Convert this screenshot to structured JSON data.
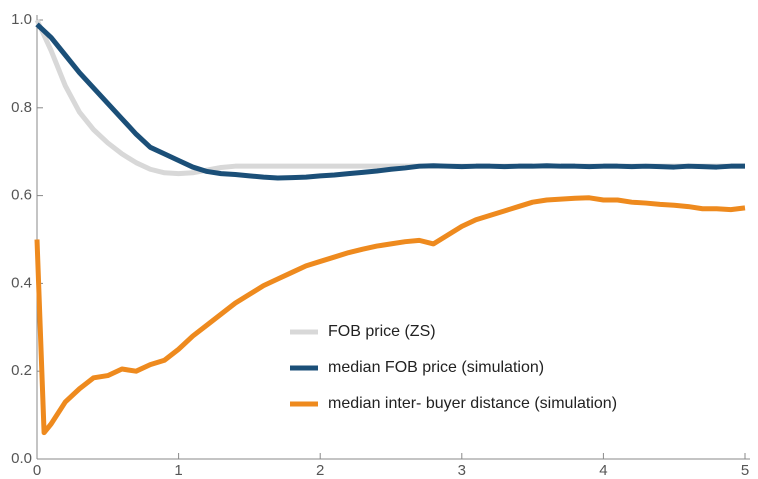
{
  "chart_data": {
    "type": "line",
    "x": [
      0,
      0.05,
      0.1,
      0.2,
      0.3,
      0.4,
      0.5,
      0.6,
      0.7,
      0.8,
      0.9,
      1.0,
      1.1,
      1.2,
      1.3,
      1.4,
      1.5,
      1.6,
      1.7,
      1.8,
      1.9,
      2.0,
      2.1,
      2.2,
      2.3,
      2.4,
      2.5,
      2.6,
      2.7,
      2.8,
      2.9,
      3.0,
      3.1,
      3.2,
      3.3,
      3.4,
      3.5,
      3.6,
      3.7,
      3.8,
      3.9,
      4.0,
      4.1,
      4.2,
      4.3,
      4.4,
      4.5,
      4.6,
      4.7,
      4.8,
      4.9,
      5.0
    ],
    "series": [
      {
        "name": "FOB price (ZS)",
        "color": "#d8d8d8",
        "values": [
          1.0,
          0.965,
          0.93,
          0.85,
          0.79,
          0.75,
          0.72,
          0.695,
          0.675,
          0.66,
          0.652,
          0.65,
          0.652,
          0.658,
          0.664,
          0.667,
          0.667,
          0.667,
          0.667,
          0.667,
          0.667,
          0.667,
          0.667,
          0.667,
          0.667,
          0.667,
          0.667,
          0.667,
          0.667,
          0.667,
          0.667,
          0.667,
          0.667,
          0.667,
          0.667,
          0.667,
          0.667,
          0.667,
          0.667,
          0.667,
          0.667,
          0.667,
          0.667,
          0.667,
          0.667,
          0.667,
          0.667,
          0.667,
          0.667,
          0.667,
          0.667,
          0.667
        ]
      },
      {
        "name": "median FOB price (simulation)",
        "color": "#1b4f78",
        "values": [
          0.99,
          0.975,
          0.96,
          0.92,
          0.88,
          0.845,
          0.81,
          0.775,
          0.74,
          0.71,
          0.695,
          0.68,
          0.665,
          0.655,
          0.65,
          0.648,
          0.645,
          0.642,
          0.64,
          0.641,
          0.642,
          0.645,
          0.647,
          0.65,
          0.653,
          0.656,
          0.66,
          0.663,
          0.667,
          0.668,
          0.667,
          0.666,
          0.667,
          0.667,
          0.666,
          0.667,
          0.667,
          0.668,
          0.667,
          0.667,
          0.666,
          0.667,
          0.667,
          0.666,
          0.667,
          0.666,
          0.665,
          0.667,
          0.666,
          0.665,
          0.667,
          0.667
        ]
      },
      {
        "name": "median inter- buyer distance (simulation)",
        "color": "#ee8a1e",
        "values": [
          0.5,
          0.06,
          0.08,
          0.13,
          0.16,
          0.185,
          0.19,
          0.205,
          0.2,
          0.215,
          0.225,
          0.25,
          0.28,
          0.305,
          0.33,
          0.355,
          0.375,
          0.395,
          0.41,
          0.425,
          0.44,
          0.45,
          0.46,
          0.47,
          0.478,
          0.485,
          0.49,
          0.495,
          0.498,
          0.49,
          0.51,
          0.53,
          0.545,
          0.555,
          0.565,
          0.575,
          0.585,
          0.59,
          0.592,
          0.594,
          0.595,
          0.59,
          0.59,
          0.585,
          0.583,
          0.58,
          0.578,
          0.575,
          0.57,
          0.57,
          0.568,
          0.572
        ]
      }
    ],
    "xlim": [
      0,
      5
    ],
    "xticks": [
      0,
      1,
      2,
      3,
      4,
      5
    ],
    "ylim": [
      0,
      1
    ],
    "yticks": [
      {
        "value": 0,
        "label": "0.0"
      },
      0.2,
      0.4,
      0.6,
      0.8,
      {
        "value": 1,
        "label": "1.0"
      }
    ],
    "legend": "lower right"
  }
}
